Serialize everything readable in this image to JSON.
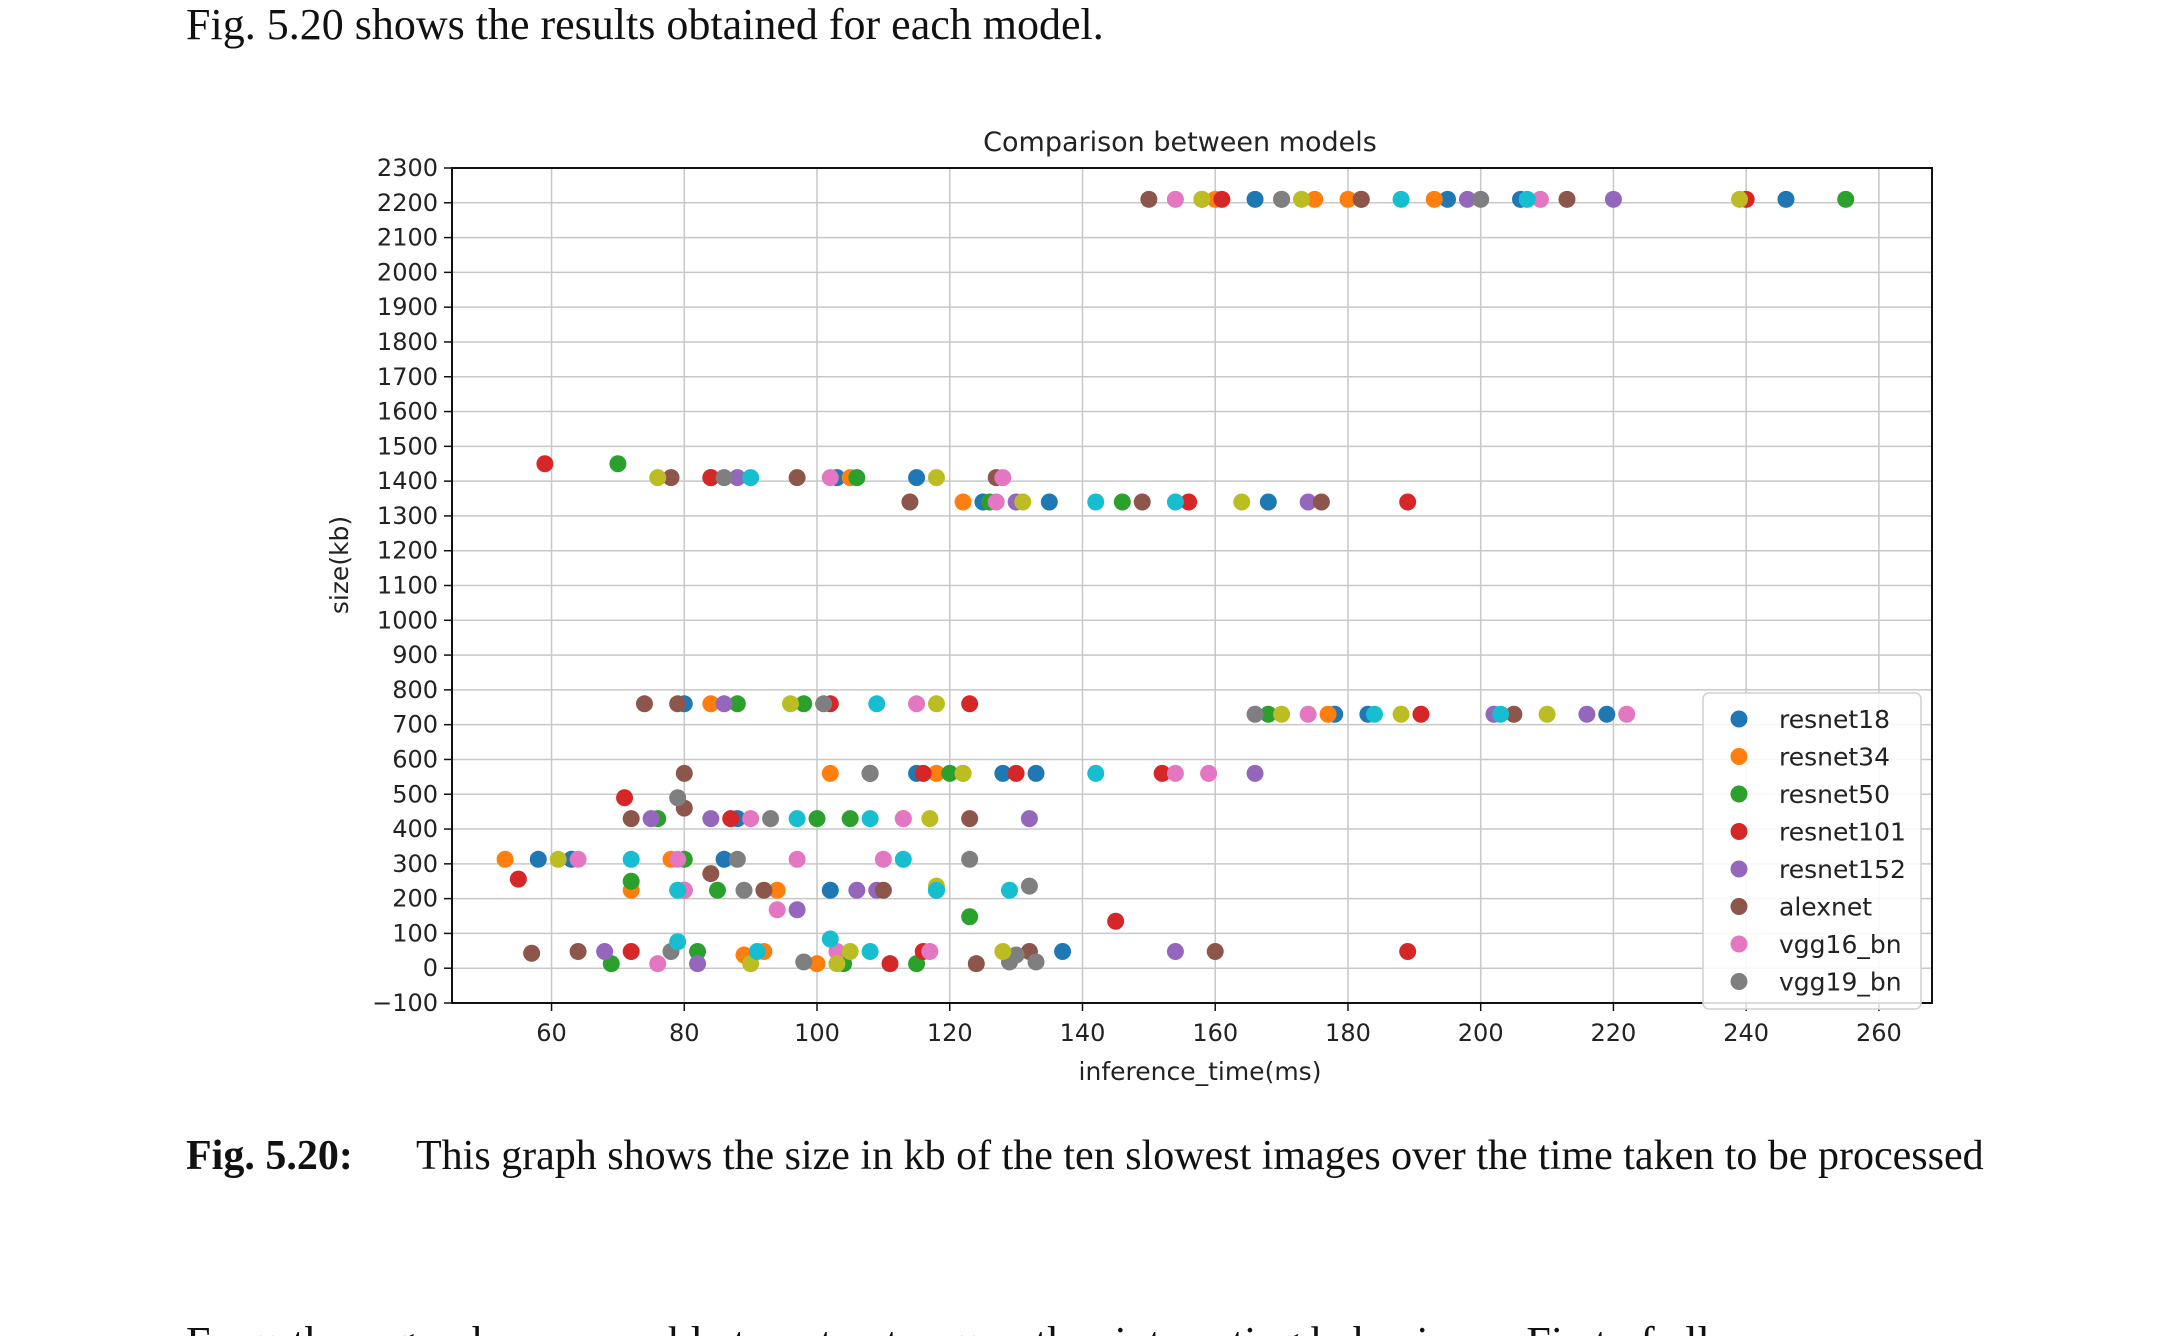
{
  "intro_text": "Fig. 5.20 shows the results obtained for each model.",
  "caption": {
    "label": "Fig. 5.20:",
    "text": "This graph shows the size in kb of the ten slowest images over the time taken to be processed"
  },
  "trailing_text": "From these graphs we are able to extract some other interesting behaviours. First of all,",
  "chart_data": {
    "type": "scatter",
    "title": "Comparison between models",
    "xlabel": "inference_time(ms)",
    "ylabel": "size(kb)",
    "xlim": [
      45,
      268
    ],
    "ylim": [
      -100,
      2300
    ],
    "xticks": [
      60,
      80,
      100,
      120,
      140,
      160,
      180,
      200,
      220,
      240,
      260
    ],
    "yticks": [
      -100,
      0,
      100,
      200,
      300,
      400,
      500,
      600,
      700,
      800,
      900,
      1000,
      1100,
      1200,
      1300,
      1400,
      1500,
      1600,
      1700,
      1800,
      1900,
      2000,
      2100,
      2200,
      2300
    ],
    "grid": true,
    "legend_position": "lower-right",
    "series": [
      {
        "name": "resnet18",
        "color": "#1f77b4",
        "points": [
          [
            58,
            313
          ],
          [
            63,
            313
          ],
          [
            86,
            313
          ],
          [
            102,
            224
          ],
          [
            108,
            560
          ],
          [
            115,
            560
          ],
          [
            118,
            224
          ],
          [
            128,
            560
          ],
          [
            133,
            560
          ],
          [
            137,
            48
          ],
          [
            115,
            1410
          ],
          [
            103,
            1410
          ],
          [
            125,
            1340
          ],
          [
            135,
            1340
          ],
          [
            168,
            1340
          ],
          [
            178,
            730
          ],
          [
            183,
            730
          ],
          [
            219,
            730
          ],
          [
            166,
            2210
          ],
          [
            195,
            2210
          ],
          [
            206,
            2210
          ],
          [
            246,
            2210
          ],
          [
            80,
            760
          ],
          [
            88,
            430
          ]
        ]
      },
      {
        "name": "resnet34",
        "color": "#ff7f0e",
        "points": [
          [
            53,
            313
          ],
          [
            72,
            224
          ],
          [
            78,
            313
          ],
          [
            89,
            38
          ],
          [
            94,
            224
          ],
          [
            100,
            13
          ],
          [
            102,
            560
          ],
          [
            105,
            1410
          ],
          [
            113,
            430
          ],
          [
            118,
            560
          ],
          [
            122,
            1340
          ],
          [
            160,
            2210
          ],
          [
            175,
            2210
          ],
          [
            180,
            2210
          ],
          [
            193,
            2210
          ],
          [
            177,
            730
          ],
          [
            84,
            760
          ],
          [
            92,
            48
          ]
        ]
      },
      {
        "name": "resnet50",
        "color": "#2ca02c",
        "points": [
          [
            70,
            1450
          ],
          [
            72,
            250
          ],
          [
            69,
            13
          ],
          [
            82,
            48
          ],
          [
            84,
            1410
          ],
          [
            85,
            224
          ],
          [
            88,
            760
          ],
          [
            98,
            760
          ],
          [
            100,
            430
          ],
          [
            104,
            13
          ],
          [
            105,
            430
          ],
          [
            106,
            1410
          ],
          [
            108,
            560
          ],
          [
            115,
            13
          ],
          [
            120,
            560
          ],
          [
            123,
            148
          ],
          [
            126,
            1340
          ],
          [
            146,
            1340
          ],
          [
            170,
            2210
          ],
          [
            255,
            2210
          ],
          [
            168,
            730
          ],
          [
            76,
            430
          ],
          [
            80,
            313
          ]
        ]
      },
      {
        "name": "resnet101",
        "color": "#d62728",
        "points": [
          [
            59,
            1450
          ],
          [
            55,
            256
          ],
          [
            71,
            490
          ],
          [
            72,
            48
          ],
          [
            80,
            224
          ],
          [
            87,
            430
          ],
          [
            102,
            760
          ],
          [
            111,
            13
          ],
          [
            116,
            48
          ],
          [
            116,
            560
          ],
          [
            123,
            760
          ],
          [
            145,
            135
          ],
          [
            152,
            560
          ],
          [
            156,
            1340
          ],
          [
            189,
            48
          ],
          [
            189,
            1340
          ],
          [
            161,
            2210
          ],
          [
            182,
            2210
          ],
          [
            240,
            2210
          ],
          [
            191,
            730
          ],
          [
            84,
            1410
          ],
          [
            130,
            560
          ]
        ]
      },
      {
        "name": "resnet152",
        "color": "#9467bd",
        "points": [
          [
            68,
            48
          ],
          [
            75,
            430
          ],
          [
            82,
            13
          ],
          [
            84,
            430
          ],
          [
            97,
            168
          ],
          [
            106,
            224
          ],
          [
            109,
            224
          ],
          [
            122,
            560
          ],
          [
            130,
            1340
          ],
          [
            132,
            430
          ],
          [
            154,
            48
          ],
          [
            166,
            560
          ],
          [
            174,
            1340
          ],
          [
            198,
            2210
          ],
          [
            220,
            2210
          ],
          [
            216,
            730
          ],
          [
            202,
            730
          ],
          [
            88,
            1410
          ],
          [
            86,
            760
          ]
        ]
      },
      {
        "name": "alexnet",
        "color": "#8c564b",
        "points": [
          [
            57,
            43
          ],
          [
            64,
            48
          ],
          [
            72,
            430
          ],
          [
            74,
            760
          ],
          [
            78,
            1410
          ],
          [
            79,
            760
          ],
          [
            80,
            460
          ],
          [
            84,
            272
          ],
          [
            92,
            224
          ],
          [
            97,
            1410
          ],
          [
            110,
            224
          ],
          [
            114,
            1340
          ],
          [
            123,
            430
          ],
          [
            124,
            13
          ],
          [
            127,
            1410
          ],
          [
            132,
            48
          ],
          [
            149,
            1340
          ],
          [
            150,
            2210
          ],
          [
            160,
            48
          ],
          [
            176,
            1340
          ],
          [
            213,
            2210
          ],
          [
            205,
            730
          ],
          [
            182,
            2210
          ],
          [
            80,
            560
          ]
        ]
      },
      {
        "name": "vgg16_bn",
        "color": "#e377c2",
        "points": [
          [
            64,
            313
          ],
          [
            76,
            13
          ],
          [
            79,
            313
          ],
          [
            90,
            430
          ],
          [
            94,
            168
          ],
          [
            97,
            313
          ],
          [
            102,
            1410
          ],
          [
            103,
            48
          ],
          [
            110,
            313
          ],
          [
            113,
            430
          ],
          [
            117,
            48
          ],
          [
            127,
            1340
          ],
          [
            128,
            1410
          ],
          [
            154,
            560
          ],
          [
            159,
            560
          ],
          [
            154,
            2210
          ],
          [
            174,
            730
          ],
          [
            209,
            2210
          ],
          [
            222,
            730
          ],
          [
            80,
            224
          ],
          [
            115,
            760
          ]
        ]
      },
      {
        "name": "vgg19_bn",
        "color": "#7f7f7f",
        "points": [
          [
            78,
            48
          ],
          [
            79,
            490
          ],
          [
            88,
            313
          ],
          [
            89,
            224
          ],
          [
            93,
            430
          ],
          [
            98,
            18
          ],
          [
            101,
            760
          ],
          [
            123,
            313
          ],
          [
            129,
            18
          ],
          [
            130,
            38
          ],
          [
            132,
            236
          ],
          [
            133,
            18
          ],
          [
            158,
            2210
          ],
          [
            166,
            730
          ],
          [
            200,
            2210
          ],
          [
            170,
            2210
          ],
          [
            108,
            560
          ],
          [
            86,
            1410
          ]
        ]
      },
      {
        "name": "",
        "color": "#bcbd22",
        "points": [
          [
            61,
            313
          ],
          [
            76,
            1410
          ],
          [
            90,
            13
          ],
          [
            96,
            760
          ],
          [
            103,
            13
          ],
          [
            105,
            48
          ],
          [
            118,
            1410
          ],
          [
            122,
            560
          ],
          [
            117,
            430
          ],
          [
            118,
            236
          ],
          [
            128,
            48
          ],
          [
            131,
            1340
          ],
          [
            164,
            1340
          ],
          [
            170,
            730
          ],
          [
            188,
            730
          ],
          [
            210,
            730
          ],
          [
            173,
            2210
          ],
          [
            239,
            2210
          ],
          [
            158,
            2210
          ],
          [
            118,
            760
          ]
        ]
      },
      {
        "name": "",
        "color": "#17becf",
        "points": [
          [
            72,
            313
          ],
          [
            79,
            76
          ],
          [
            91,
            48
          ],
          [
            97,
            430
          ],
          [
            102,
            84
          ],
          [
            108,
            48
          ],
          [
            108,
            430
          ],
          [
            109,
            760
          ],
          [
            113,
            313
          ],
          [
            118,
            224
          ],
          [
            129,
            224
          ],
          [
            142,
            1340
          ],
          [
            154,
            1340
          ],
          [
            142,
            560
          ],
          [
            188,
            2210
          ],
          [
            203,
            730
          ],
          [
            207,
            2210
          ],
          [
            90,
            1410
          ],
          [
            79,
            224
          ],
          [
            184,
            730
          ]
        ]
      }
    ]
  }
}
